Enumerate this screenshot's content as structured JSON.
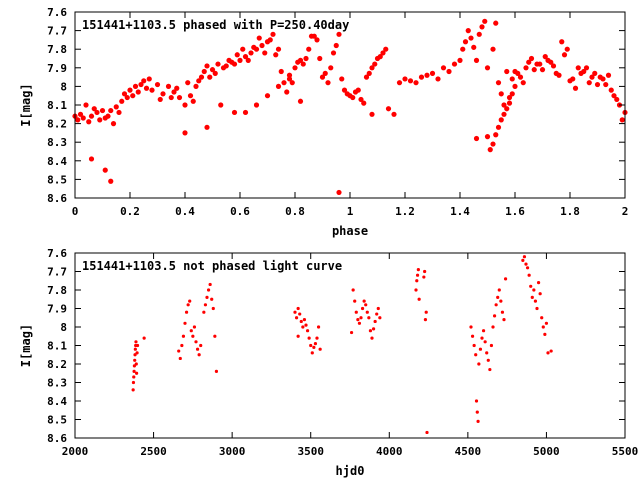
{
  "chart_data": [
    {
      "type": "scatter",
      "title": "151441+1103.5 phased with P=250.40day",
      "xlabel": "phase",
      "ylabel": "I[mag]",
      "xlim": [
        0,
        2
      ],
      "ylim": [
        8.6,
        7.6
      ],
      "y_inverted": true,
      "grid": false,
      "marker_color": "#ff0000",
      "xticks": [
        0,
        0.2,
        0.4,
        0.6,
        0.8,
        1,
        1.2,
        1.4,
        1.6,
        1.8,
        2
      ],
      "xtick_labels": [
        "0",
        "0.2",
        "0.4",
        "0.6",
        "0.8",
        "1",
        "1.2",
        "1.4",
        "1.6",
        "1.8",
        "2"
      ],
      "yticks": [
        7.6,
        7.7,
        7.8,
        7.9,
        8,
        8.1,
        8.2,
        8.3,
        8.4,
        8.5,
        8.6
      ],
      "ytick_labels": [
        "7.6",
        "7.7",
        "7.8",
        "7.9",
        "8",
        "8.1",
        "8.2",
        "8.3",
        "8.4",
        "8.5",
        "8.6"
      ],
      "points": [
        [
          0.0,
          8.16
        ],
        [
          0.01,
          8.18
        ],
        [
          0.02,
          8.15
        ],
        [
          0.03,
          8.17
        ],
        [
          0.05,
          8.19
        ],
        [
          0.06,
          8.16
        ],
        [
          0.08,
          8.14
        ],
        [
          0.09,
          8.18
        ],
        [
          0.1,
          8.13
        ],
        [
          0.11,
          8.17
        ],
        [
          0.12,
          8.16
        ],
        [
          0.14,
          8.2
        ],
        [
          0.15,
          8.11
        ],
        [
          0.16,
          8.14
        ],
        [
          0.17,
          8.08
        ],
        [
          0.18,
          8.04
        ],
        [
          0.19,
          8.06
        ],
        [
          0.2,
          8.02
        ],
        [
          0.22,
          8.0
        ],
        [
          0.23,
          8.03
        ],
        [
          0.24,
          7.99
        ],
        [
          0.25,
          7.97
        ],
        [
          0.26,
          8.01
        ],
        [
          0.28,
          8.02
        ],
        [
          0.3,
          7.99
        ],
        [
          0.32,
          8.04
        ],
        [
          0.34,
          8.0
        ],
        [
          0.36,
          8.03
        ],
        [
          0.38,
          8.06
        ],
        [
          0.4,
          8.1
        ],
        [
          0.42,
          8.05
        ],
        [
          0.44,
          8.0
        ],
        [
          0.46,
          7.95
        ],
        [
          0.47,
          7.92
        ],
        [
          0.48,
          7.89
        ],
        [
          0.5,
          7.91
        ],
        [
          0.52,
          7.88
        ],
        [
          0.54,
          7.9
        ],
        [
          0.56,
          7.86
        ],
        [
          0.58,
          7.88
        ],
        [
          0.6,
          7.86
        ],
        [
          0.62,
          7.84
        ],
        [
          0.64,
          7.82
        ],
        [
          0.66,
          7.8
        ],
        [
          0.68,
          7.78
        ],
        [
          0.7,
          7.76
        ],
        [
          0.72,
          7.72
        ],
        [
          0.74,
          7.8
        ],
        [
          0.76,
          7.98
        ],
        [
          0.78,
          7.94
        ],
        [
          0.8,
          7.9
        ],
        [
          0.82,
          7.86
        ],
        [
          0.84,
          7.85
        ],
        [
          0.86,
          7.73
        ],
        [
          0.88,
          7.75
        ],
        [
          0.9,
          7.95
        ],
        [
          0.92,
          7.98
        ],
        [
          0.93,
          7.9
        ],
        [
          0.94,
          7.82
        ],
        [
          0.95,
          7.78
        ],
        [
          0.96,
          7.72
        ],
        [
          0.98,
          8.02
        ],
        [
          1.0,
          8.05
        ],
        [
          1.02,
          8.03
        ],
        [
          1.04,
          8.07
        ],
        [
          1.06,
          7.95
        ],
        [
          1.08,
          7.9
        ],
        [
          1.1,
          7.85
        ],
        [
          1.12,
          7.82
        ],
        [
          1.14,
          8.12
        ],
        [
          1.16,
          8.15
        ],
        [
          1.2,
          7.96
        ],
        [
          1.24,
          7.98
        ],
        [
          1.28,
          7.94
        ],
        [
          1.32,
          7.96
        ],
        [
          1.36,
          7.92
        ],
        [
          1.4,
          7.86
        ],
        [
          1.42,
          7.76
        ],
        [
          1.44,
          7.74
        ],
        [
          1.46,
          7.86
        ],
        [
          1.48,
          7.68
        ],
        [
          1.49,
          7.65
        ],
        [
          1.5,
          7.9
        ],
        [
          1.52,
          7.8
        ],
        [
          1.54,
          7.98
        ],
        [
          1.55,
          8.04
        ],
        [
          1.56,
          8.1
        ],
        [
          1.58,
          8.06
        ],
        [
          1.6,
          7.92
        ],
        [
          1.62,
          7.95
        ],
        [
          1.64,
          7.9
        ],
        [
          1.66,
          7.85
        ],
        [
          1.68,
          7.88
        ],
        [
          1.7,
          7.91
        ],
        [
          1.72,
          7.86
        ],
        [
          1.74,
          7.89
        ],
        [
          1.76,
          7.94
        ],
        [
          1.78,
          7.83
        ],
        [
          1.8,
          7.97
        ],
        [
          1.82,
          8.01
        ],
        [
          1.84,
          7.93
        ],
        [
          1.86,
          7.9
        ],
        [
          1.88,
          7.95
        ],
        [
          1.9,
          7.99
        ],
        [
          1.92,
          7.96
        ],
        [
          1.94,
          7.94
        ],
        [
          1.96,
          8.05
        ],
        [
          1.98,
          8.1
        ],
        [
          2.0,
          8.14
        ],
        [
          0.06,
          8.39
        ],
        [
          0.11,
          8.45
        ],
        [
          0.13,
          8.51
        ],
        [
          0.4,
          8.25
        ],
        [
          0.48,
          8.22
        ],
        [
          0.53,
          8.1
        ],
        [
          0.58,
          8.14
        ],
        [
          0.62,
          8.14
        ],
        [
          0.66,
          8.1
        ],
        [
          0.7,
          8.05
        ],
        [
          0.74,
          8.0
        ],
        [
          0.78,
          7.96
        ],
        [
          0.82,
          8.08
        ],
        [
          0.96,
          8.57
        ],
        [
          1.08,
          8.15
        ],
        [
          1.46,
          8.28
        ],
        [
          1.5,
          8.27
        ],
        [
          1.51,
          8.34
        ],
        [
          1.52,
          8.31
        ],
        [
          1.53,
          8.26
        ],
        [
          1.54,
          8.22
        ],
        [
          1.55,
          8.18
        ],
        [
          1.56,
          8.15
        ],
        [
          1.57,
          8.12
        ],
        [
          1.58,
          8.09
        ],
        [
          1.59,
          8.04
        ],
        [
          1.6,
          8.0
        ],
        [
          0.04,
          8.1
        ],
        [
          0.07,
          8.12
        ],
        [
          0.13,
          8.13
        ],
        [
          0.21,
          8.05
        ],
        [
          0.27,
          7.96
        ],
        [
          0.31,
          8.07
        ],
        [
          0.35,
          8.06
        ],
        [
          0.37,
          8.01
        ],
        [
          0.41,
          7.98
        ],
        [
          0.43,
          8.08
        ],
        [
          0.45,
          7.97
        ],
        [
          0.49,
          7.95
        ],
        [
          0.51,
          7.93
        ],
        [
          0.55,
          7.89
        ],
        [
          0.57,
          7.87
        ],
        [
          0.59,
          7.83
        ],
        [
          0.61,
          7.8
        ],
        [
          0.63,
          7.86
        ],
        [
          0.65,
          7.79
        ],
        [
          0.67,
          7.74
        ],
        [
          0.69,
          7.82
        ],
        [
          0.71,
          7.75
        ],
        [
          0.73,
          7.83
        ],
        [
          0.75,
          7.92
        ],
        [
          0.77,
          8.03
        ],
        [
          0.79,
          7.98
        ],
        [
          0.81,
          7.87
        ],
        [
          0.83,
          7.88
        ],
        [
          0.85,
          7.8
        ],
        [
          0.87,
          7.73
        ],
        [
          0.89,
          7.85
        ],
        [
          0.91,
          7.93
        ],
        [
          0.97,
          7.96
        ],
        [
          0.99,
          8.04
        ],
        [
          1.01,
          8.06
        ],
        [
          1.03,
          8.02
        ],
        [
          1.05,
          8.09
        ],
        [
          1.07,
          7.93
        ],
        [
          1.09,
          7.88
        ],
        [
          1.11,
          7.84
        ],
        [
          1.13,
          7.8
        ],
        [
          1.18,
          7.98
        ],
        [
          1.22,
          7.97
        ],
        [
          1.26,
          7.95
        ],
        [
          1.3,
          7.93
        ],
        [
          1.34,
          7.9
        ],
        [
          1.38,
          7.88
        ],
        [
          1.41,
          7.8
        ],
        [
          1.43,
          7.7
        ],
        [
          1.45,
          7.79
        ],
        [
          1.47,
          7.72
        ],
        [
          1.53,
          7.66
        ],
        [
          1.57,
          7.92
        ],
        [
          1.59,
          7.96
        ],
        [
          1.61,
          7.93
        ],
        [
          1.63,
          7.98
        ],
        [
          1.65,
          7.87
        ],
        [
          1.67,
          7.91
        ],
        [
          1.69,
          7.88
        ],
        [
          1.71,
          7.84
        ],
        [
          1.73,
          7.87
        ],
        [
          1.75,
          7.93
        ],
        [
          1.77,
          7.76
        ],
        [
          1.79,
          7.8
        ],
        [
          1.81,
          7.96
        ],
        [
          1.83,
          7.9
        ],
        [
          1.85,
          7.92
        ],
        [
          1.87,
          7.98
        ],
        [
          1.89,
          7.93
        ],
        [
          1.91,
          7.95
        ],
        [
          1.93,
          7.99
        ],
        [
          1.95,
          8.02
        ],
        [
          1.97,
          8.07
        ],
        [
          1.99,
          8.18
        ]
      ]
    },
    {
      "type": "scatter",
      "title": "151441+1103.5 not phased light curve",
      "xlabel": "hjd0",
      "ylabel": "I[mag]",
      "xlim": [
        2000,
        5500
      ],
      "ylim": [
        8.6,
        7.6
      ],
      "y_inverted": true,
      "grid": false,
      "marker_color": "#ff0000",
      "xticks": [
        2000,
        2500,
        3000,
        3500,
        4000,
        4500,
        5000,
        5500
      ],
      "xtick_labels": [
        "2000",
        "2500",
        "3000",
        "3500",
        "4000",
        "4500",
        "5000",
        "5500"
      ],
      "yticks": [
        7.6,
        7.7,
        7.8,
        7.9,
        8,
        8.1,
        8.2,
        8.3,
        8.4,
        8.5,
        8.6
      ],
      "ytick_labels": [
        "7.6",
        "7.7",
        "7.8",
        "7.9",
        "8",
        "8.1",
        "8.2",
        "8.3",
        "8.4",
        "8.5",
        "8.6"
      ],
      "points": [
        [
          2370,
          8.34
        ],
        [
          2372,
          8.3
        ],
        [
          2374,
          8.27
        ],
        [
          2376,
          8.24
        ],
        [
          2378,
          8.21
        ],
        [
          2380,
          8.18
        ],
        [
          2382,
          8.15
        ],
        [
          2384,
          8.12
        ],
        [
          2386,
          8.1
        ],
        [
          2388,
          8.08
        ],
        [
          2390,
          8.2
        ],
        [
          2392,
          8.25
        ],
        [
          2395,
          8.14
        ],
        [
          2398,
          8.1
        ],
        [
          2440,
          8.06
        ],
        [
          2660,
          8.13
        ],
        [
          2670,
          8.17
        ],
        [
          2680,
          8.1
        ],
        [
          2690,
          8.05
        ],
        [
          2700,
          7.98
        ],
        [
          2710,
          7.92
        ],
        [
          2720,
          7.88
        ],
        [
          2730,
          7.86
        ],
        [
          2740,
          8.02
        ],
        [
          2750,
          8.05
        ],
        [
          2760,
          8.0
        ],
        [
          2770,
          8.08
        ],
        [
          2780,
          8.12
        ],
        [
          2790,
          8.15
        ],
        [
          2800,
          8.1
        ],
        [
          2820,
          7.92
        ],
        [
          2830,
          7.88
        ],
        [
          2840,
          7.84
        ],
        [
          2850,
          7.8
        ],
        [
          2860,
          7.77
        ],
        [
          2870,
          7.85
        ],
        [
          2880,
          7.9
        ],
        [
          2890,
          8.05
        ],
        [
          2900,
          8.24
        ],
        [
          3400,
          7.92
        ],
        [
          3410,
          7.95
        ],
        [
          3420,
          7.9
        ],
        [
          3430,
          7.93
        ],
        [
          3440,
          7.97
        ],
        [
          3450,
          8.0
        ],
        [
          3460,
          7.96
        ],
        [
          3470,
          7.99
        ],
        [
          3480,
          8.02
        ],
        [
          3490,
          8.06
        ],
        [
          3500,
          8.1
        ],
        [
          3510,
          8.14
        ],
        [
          3520,
          8.11
        ],
        [
          3530,
          8.09
        ],
        [
          3540,
          8.06
        ],
        [
          3550,
          8.0
        ],
        [
          3420,
          8.05
        ],
        [
          3560,
          8.12
        ],
        [
          3760,
          8.03
        ],
        [
          3770,
          7.8
        ],
        [
          3780,
          7.86
        ],
        [
          3790,
          7.92
        ],
        [
          3800,
          7.96
        ],
        [
          3810,
          7.98
        ],
        [
          3820,
          7.95
        ],
        [
          3830,
          7.9
        ],
        [
          3840,
          7.86
        ],
        [
          3850,
          7.88
        ],
        [
          3860,
          7.92
        ],
        [
          3870,
          7.95
        ],
        [
          3880,
          8.02
        ],
        [
          3890,
          8.06
        ],
        [
          3900,
          8.01
        ],
        [
          3910,
          7.97
        ],
        [
          3920,
          7.93
        ],
        [
          3930,
          7.9
        ],
        [
          3940,
          7.95
        ],
        [
          4170,
          7.8
        ],
        [
          4175,
          7.75
        ],
        [
          4180,
          7.72
        ],
        [
          4185,
          7.69
        ],
        [
          4190,
          7.85
        ],
        [
          4220,
          7.73
        ],
        [
          4225,
          7.7
        ],
        [
          4230,
          7.96
        ],
        [
          4235,
          7.92
        ],
        [
          4240,
          8.57
        ],
        [
          4520,
          8.0
        ],
        [
          4530,
          8.05
        ],
        [
          4540,
          8.1
        ],
        [
          4550,
          8.15
        ],
        [
          4555,
          8.4
        ],
        [
          4560,
          8.46
        ],
        [
          4565,
          8.51
        ],
        [
          4570,
          8.2
        ],
        [
          4580,
          8.12
        ],
        [
          4590,
          8.06
        ],
        [
          4600,
          8.02
        ],
        [
          4610,
          8.08
        ],
        [
          4620,
          8.14
        ],
        [
          4630,
          8.18
        ],
        [
          4640,
          8.23
        ],
        [
          4650,
          8.1
        ],
        [
          4660,
          8.0
        ],
        [
          4670,
          7.94
        ],
        [
          4680,
          7.88
        ],
        [
          4690,
          7.84
        ],
        [
          4700,
          7.8
        ],
        [
          4710,
          7.86
        ],
        [
          4720,
          7.92
        ],
        [
          4730,
          7.96
        ],
        [
          4740,
          7.74
        ],
        [
          4850,
          7.64
        ],
        [
          4860,
          7.62
        ],
        [
          4870,
          7.66
        ],
        [
          4880,
          7.68
        ],
        [
          4890,
          7.72
        ],
        [
          4900,
          7.78
        ],
        [
          4910,
          7.84
        ],
        [
          4920,
          7.8
        ],
        [
          4930,
          7.86
        ],
        [
          4940,
          7.9
        ],
        [
          4950,
          7.76
        ],
        [
          4960,
          7.82
        ],
        [
          4970,
          7.95
        ],
        [
          4980,
          8.0
        ],
        [
          4990,
          8.04
        ],
        [
          5000,
          7.98
        ],
        [
          5010,
          8.14
        ],
        [
          5030,
          8.13
        ]
      ]
    }
  ]
}
